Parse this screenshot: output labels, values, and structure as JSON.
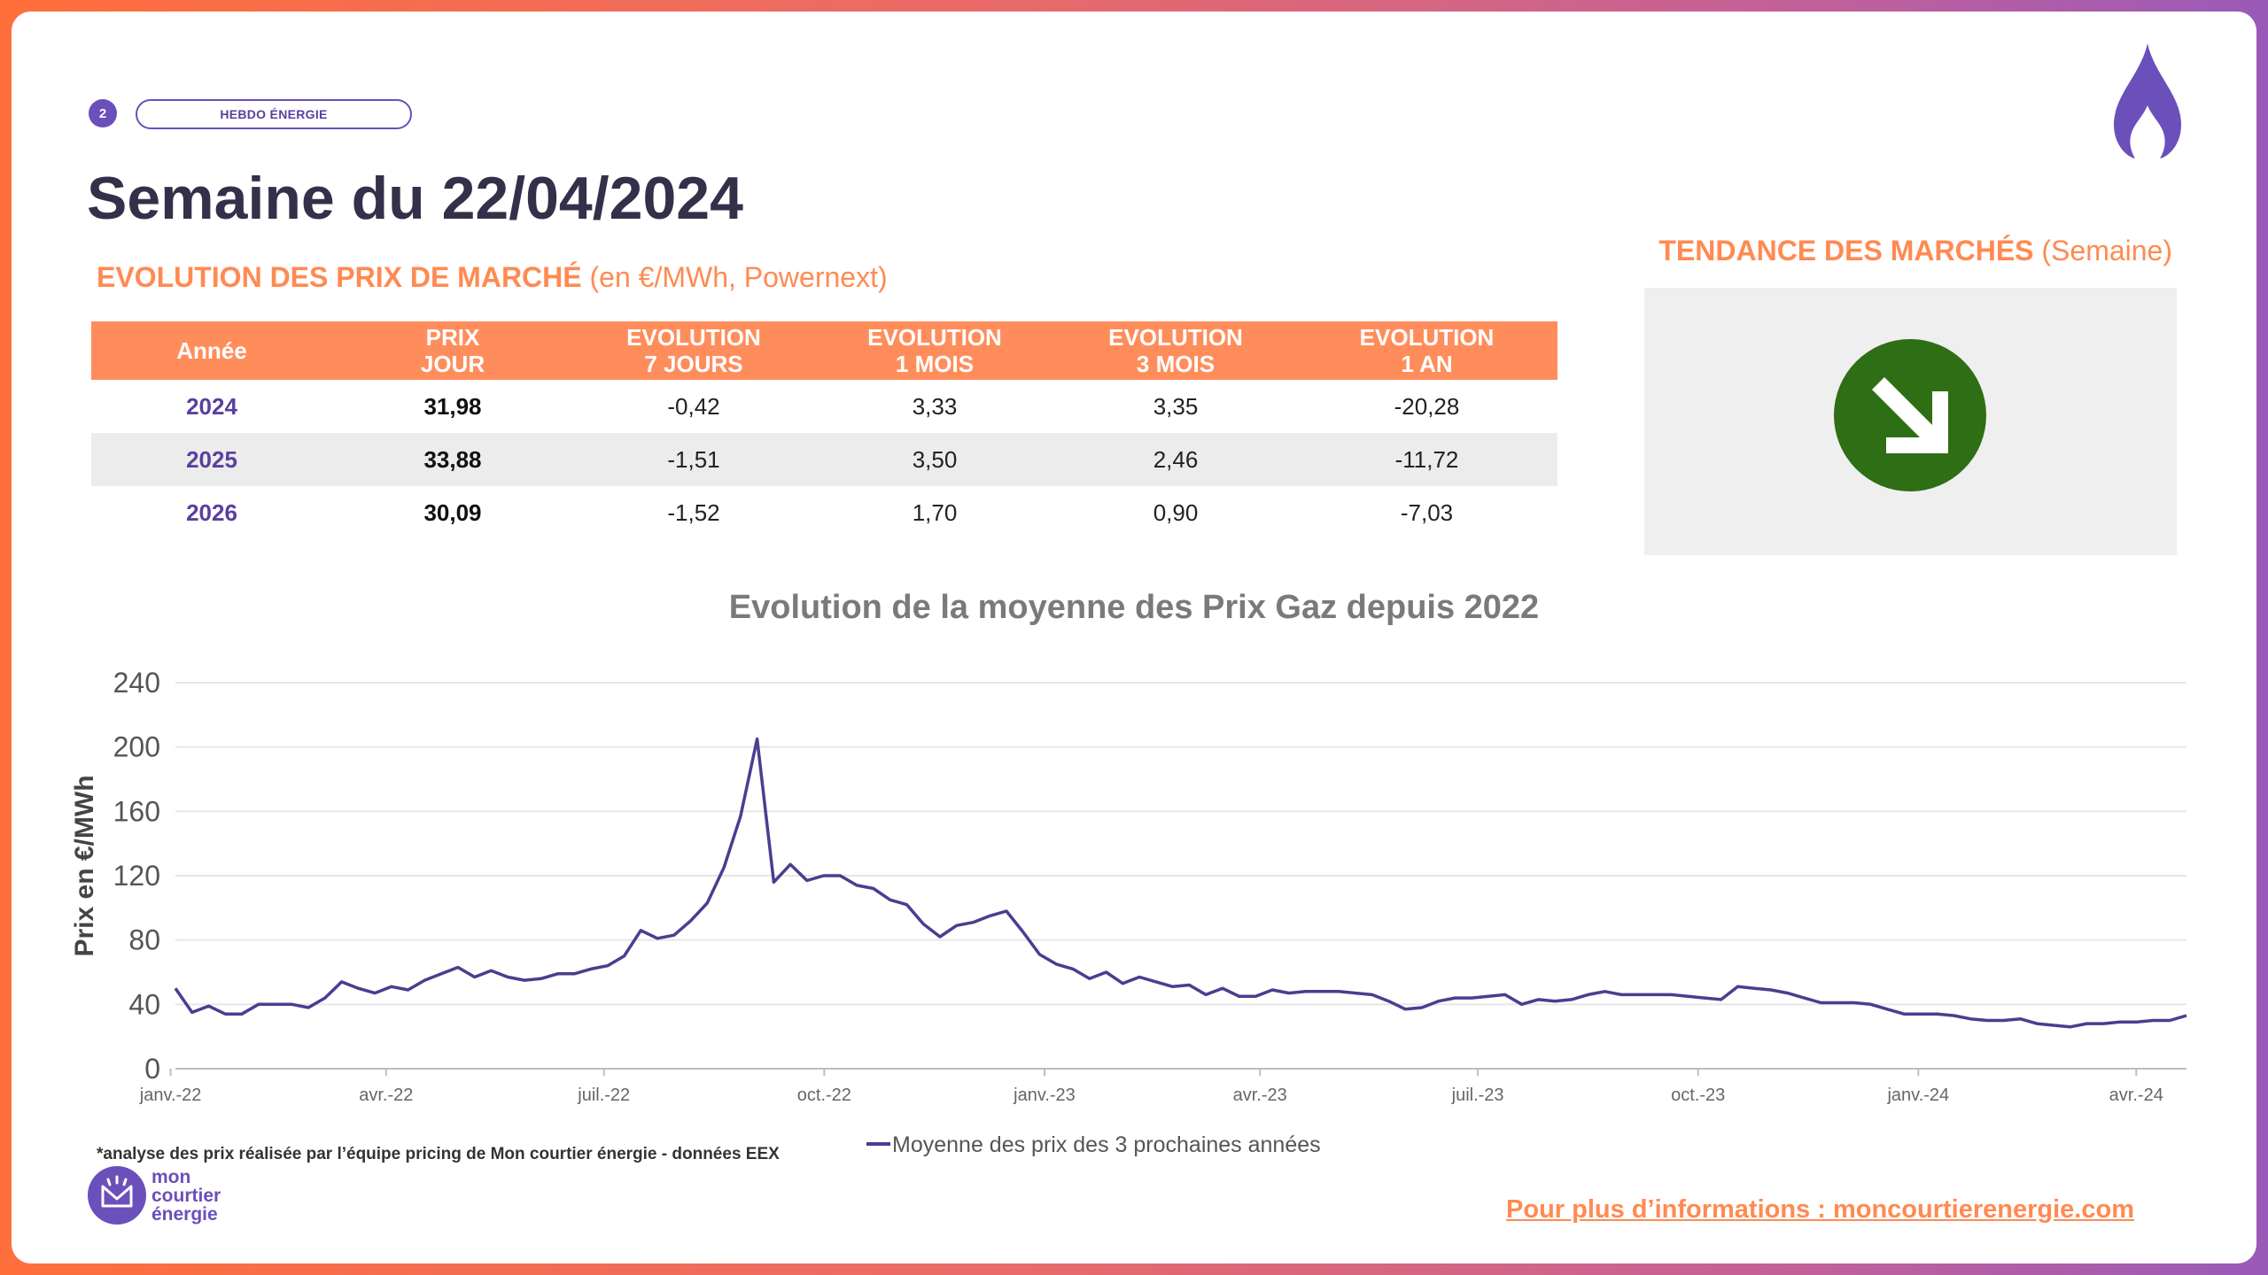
{
  "header": {
    "page_number": "2",
    "tag": "HEBDO ÉNERGIE",
    "title": "Semaine du 22/04/2024"
  },
  "market_prices": {
    "title": "EVOLUTION DES PRIX DE MARCHÉ",
    "subtitle": "(en €/MWh, Powernext)",
    "columns": [
      {
        "l1": "Année",
        "l2": ""
      },
      {
        "l1": "PRIX",
        "l2": "JOUR"
      },
      {
        "l1": "EVOLUTION",
        "l2": "7 JOURS"
      },
      {
        "l1": "EVOLUTION",
        "l2": "1 MOIS"
      },
      {
        "l1": "EVOLUTION",
        "l2": "3 MOIS"
      },
      {
        "l1": "EVOLUTION",
        "l2": "1 AN"
      }
    ],
    "rows": [
      {
        "year": "2024",
        "prix": "31,98",
        "e7j": "-0,42",
        "e1m": "3,33",
        "e3m": "3,35",
        "e1a": "-20,28"
      },
      {
        "year": "2025",
        "prix": "33,88",
        "e7j": "-1,51",
        "e1m": "3,50",
        "e3m": "2,46",
        "e1a": "-11,72"
      },
      {
        "year": "2026",
        "prix": "30,09",
        "e7j": "-1,52",
        "e1m": "1,70",
        "e3m": "0,90",
        "e1a": "-7,03"
      }
    ]
  },
  "trend": {
    "title": "TENDANCE DES MARCHÉS",
    "subtitle": "(Semaine)",
    "direction": "down",
    "icon": "arrow-down-right-icon",
    "color": "#2e6e14"
  },
  "chart_data": {
    "type": "line",
    "title": "Evolution de la moyenne des Prix Gaz depuis 2022",
    "ylabel": "Prix en €/MWh",
    "xlabel": "",
    "ylim": [
      0,
      240
    ],
    "yticks": [
      0,
      40,
      80,
      120,
      160,
      200,
      240
    ],
    "xticks": [
      "janv.-22",
      "avr.-22",
      "juil.-22",
      "oct.-22",
      "janv.-23",
      "avr.-23",
      "juil.-23",
      "oct.-23",
      "janv.-24",
      "avr.-24"
    ],
    "x_start": "2022-01-03",
    "x_end": "2024-04-22",
    "grid": true,
    "legend_position": "bottom",
    "series": [
      {
        "name": "Moyenne des prix des 3 prochaines années",
        "color": "#4b3d8f",
        "values": [
          50,
          35,
          39,
          34,
          34,
          40,
          40,
          40,
          38,
          44,
          54,
          50,
          47,
          51,
          49,
          55,
          59,
          63,
          57,
          61,
          57,
          55,
          56,
          59,
          59,
          62,
          64,
          70,
          86,
          81,
          83,
          92,
          103,
          125,
          157,
          205,
          116,
          127,
          117,
          120,
          120,
          114,
          112,
          105,
          102,
          90,
          82,
          89,
          91,
          95,
          98,
          85,
          71,
          65,
          62,
          56,
          60,
          53,
          57,
          54,
          51,
          52,
          46,
          50,
          45,
          45,
          49,
          47,
          48,
          48,
          48,
          47,
          46,
          42,
          37,
          38,
          42,
          44,
          44,
          45,
          46,
          40,
          43,
          42,
          43,
          46,
          48,
          46,
          46,
          46,
          46,
          45,
          44,
          43,
          51,
          50,
          49,
          47,
          44,
          41,
          41,
          41,
          40,
          37,
          34,
          34,
          34,
          33,
          31,
          30,
          30,
          31,
          28,
          27,
          26,
          28,
          28,
          29,
          29,
          30,
          30,
          33
        ]
      }
    ]
  },
  "footer": {
    "footnote": "*analyse des prix réalisée par l’équipe pricing de Mon courtier énergie -  données EEX",
    "brand": "mon\ncourtier\nénergie",
    "link": "Pour plus d’informations : moncourtierenergie.com"
  }
}
